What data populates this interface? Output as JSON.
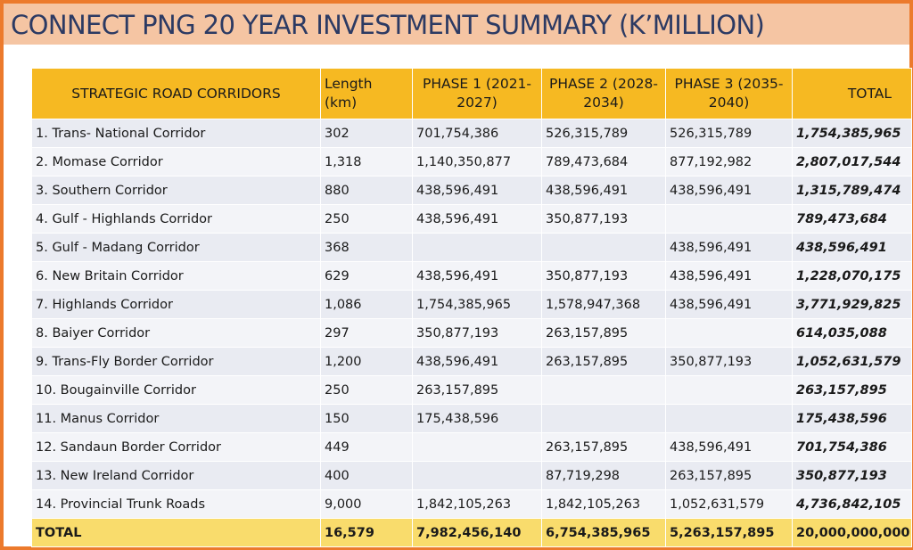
{
  "title": "CONNECT PNG 20 YEAR INVESTMENT SUMMARY (K’MILLION)",
  "colors": {
    "frame_border": "#ec7a2c",
    "title_band": "#f5c5a3",
    "title_text": "#2c3a63",
    "header_fill": "#f6b922",
    "row_fill": "#e9ebf2",
    "footer_fill": "#f9dc6c"
  },
  "table": {
    "headers": [
      "STRATEGIC ROAD CORRIDORS",
      "Length (km)",
      "PHASE 1 (2021-2027)",
      "PHASE 2 (2028-2034)",
      "PHASE 3 (2035-2040)",
      "TOTAL"
    ],
    "rows": [
      {
        "corridor": "1. Trans- National Corridor",
        "length": "302",
        "phase1": "701,754,386",
        "phase2": "526,315,789",
        "phase3": "526,315,789",
        "total": "1,754,385,965"
      },
      {
        "corridor": "2. Momase Corridor",
        "length": "1,318",
        "phase1": "1,140,350,877",
        "phase2": "789,473,684",
        "phase3": "877,192,982",
        "total": "2,807,017,544"
      },
      {
        "corridor": "3. Southern Corridor",
        "length": "880",
        "phase1": "438,596,491",
        "phase2": "438,596,491",
        "phase3": "438,596,491",
        "total": "1,315,789,474"
      },
      {
        "corridor": "4. Gulf - Highlands Corridor",
        "length": "250",
        "phase1": "438,596,491",
        "phase2": "350,877,193",
        "phase3": "",
        "total": "789,473,684"
      },
      {
        "corridor": "5. Gulf - Madang Corridor",
        "length": "368",
        "phase1": "",
        "phase2": "",
        "phase3": "438,596,491",
        "total": "438,596,491"
      },
      {
        "corridor": "6. New Britain Corridor",
        "length": "629",
        "phase1": "438,596,491",
        "phase2": "350,877,193",
        "phase3": "438,596,491",
        "total": "1,228,070,175"
      },
      {
        "corridor": "7. Highlands Corridor",
        "length": "1,086",
        "phase1": "1,754,385,965",
        "phase2": "1,578,947,368",
        "phase3": "438,596,491",
        "total": "3,771,929,825"
      },
      {
        "corridor": "8. Baiyer Corridor",
        "length": "297",
        "phase1": "350,877,193",
        "phase2": "263,157,895",
        "phase3": "",
        "total": "614,035,088"
      },
      {
        "corridor": "9. Trans-Fly Border Corridor",
        "length": "1,200",
        "phase1": "438,596,491",
        "phase2": "263,157,895",
        "phase3": "350,877,193",
        "total": "1,052,631,579"
      },
      {
        "corridor": "10. Bougainville  Corridor",
        "length": "250",
        "phase1": "263,157,895",
        "phase2": "",
        "phase3": "",
        "total": "263,157,895"
      },
      {
        "corridor": "11. Manus Corridor",
        "length": "150",
        "phase1": "175,438,596",
        "phase2": "",
        "phase3": "",
        "total": "175,438,596"
      },
      {
        "corridor": "12. Sandaun Border Corridor",
        "length": "449",
        "phase1": "",
        "phase2": "263,157,895",
        "phase3": "438,596,491",
        "total": "701,754,386"
      },
      {
        "corridor": "13. New Ireland Corridor",
        "length": "400",
        "phase1": "",
        "phase2": "87,719,298",
        "phase3": "263,157,895",
        "total": "350,877,193"
      },
      {
        "corridor": "14. Provincial Trunk Roads",
        "length": "9,000",
        "phase1": "1,842,105,263",
        "phase2": "1,842,105,263",
        "phase3": "1,052,631,579",
        "total": "4,736,842,105"
      }
    ],
    "footer": {
      "label": "TOTAL",
      "length": "16,579",
      "phase1": "7,982,456,140",
      "phase2": "6,754,385,965",
      "phase3": "5,263,157,895",
      "total": "20,000,000,000"
    }
  }
}
